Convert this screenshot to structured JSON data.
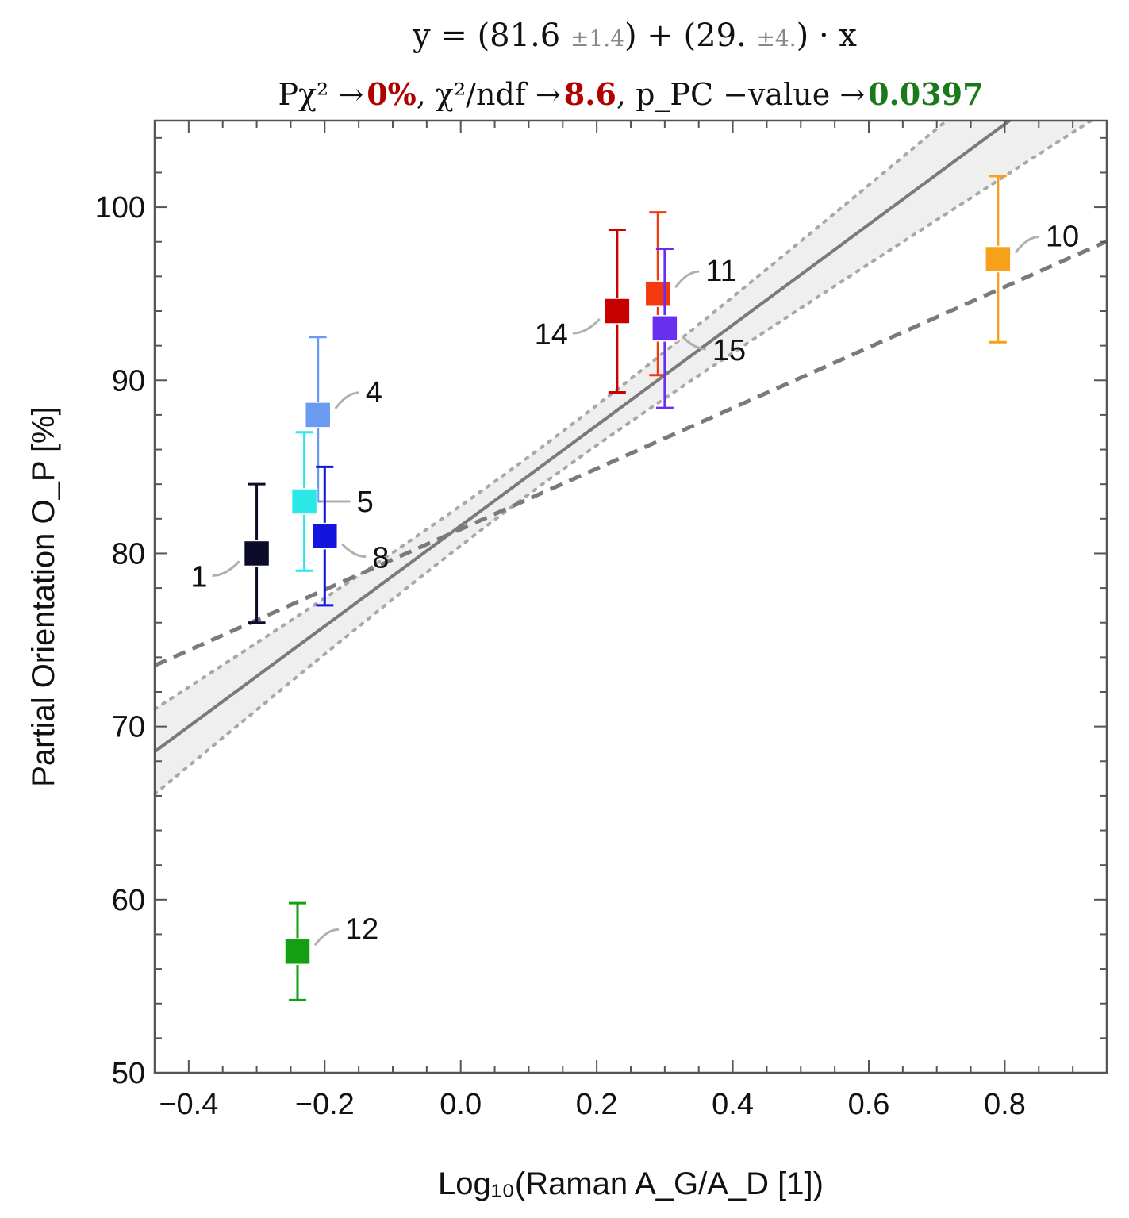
{
  "chart_data": {
    "type": "scatter",
    "title": {
      "equation_prefix": "y = (81.6 ",
      "intercept_err": "±1.4",
      "equation_mid": ") + (29. ",
      "slope_err": "±4.",
      "equation_suffix": ") · x"
    },
    "subtitle": {
      "pchi_label": "Pχ² →",
      "pchi_value": "0%",
      "chi_ndf_label": ",  χ²/ndf →",
      "chi_ndf_value": "8.6",
      "pvalue_label": ",  p_PC −value →",
      "pvalue_value": "0.0397"
    },
    "xlabel": "Log₁₀(Raman A_G/A_D [1])",
    "ylabel": "Partial Orientation O_P [%]",
    "xlim": [
      -0.45,
      0.95
    ],
    "ylim": [
      50,
      105
    ],
    "xticks": [
      -0.4,
      -0.2,
      0.0,
      0.2,
      0.4,
      0.6,
      0.8
    ],
    "xtick_labels": [
      "−0.4",
      "−0.2",
      "0.0",
      "0.2",
      "0.4",
      "0.6",
      "0.8"
    ],
    "yticks": [
      50,
      60,
      70,
      80,
      90,
      100
    ],
    "ytick_labels": [
      "50",
      "60",
      "70",
      "80",
      "90",
      "100"
    ],
    "fit": {
      "intercept": 81.6,
      "slope": 29.0,
      "band_intercept_err": 1.4,
      "band_slope_err": 4.0,
      "color": "#7a7a7a"
    },
    "fit_dashed": {
      "intercept": 81.4,
      "slope": 17.5,
      "color": "#7a7a7a"
    },
    "points": [
      {
        "label": "1",
        "x": -0.3,
        "y": 80,
        "ylo": 76,
        "yhi": 84,
        "color": "#0b0b2a",
        "label_side": "left-down"
      },
      {
        "label": "4",
        "x": -0.21,
        "y": 88,
        "ylo": 83,
        "yhi": 92.5,
        "color": "#6a9bf0",
        "label_side": "right-up"
      },
      {
        "label": "5",
        "x": -0.23,
        "y": 83,
        "ylo": 79,
        "yhi": 87,
        "color": "#2de8e8",
        "label_side": "right"
      },
      {
        "label": "8",
        "x": -0.2,
        "y": 81,
        "ylo": 77,
        "yhi": 85,
        "color": "#1414e0",
        "label_side": "right-down"
      },
      {
        "label": "10",
        "x": 0.79,
        "y": 97,
        "ylo": 92.2,
        "yhi": 101.8,
        "color": "#f7a11a",
        "label_side": "right-up"
      },
      {
        "label": "11",
        "x": 0.29,
        "y": 95,
        "ylo": 90.3,
        "yhi": 99.7,
        "color": "#f33a0f",
        "label_side": "right-up"
      },
      {
        "label": "12",
        "x": -0.24,
        "y": 57,
        "ylo": 54.2,
        "yhi": 59.8,
        "color": "#12a012",
        "label_side": "right-up"
      },
      {
        "label": "14",
        "x": 0.23,
        "y": 94,
        "ylo": 89.3,
        "yhi": 98.7,
        "color": "#c80000",
        "label_side": "left-down"
      },
      {
        "label": "15",
        "x": 0.3,
        "y": 93,
        "ylo": 88.4,
        "yhi": 97.6,
        "color": "#6a2ef0",
        "label_side": "right-down"
      }
    ]
  }
}
